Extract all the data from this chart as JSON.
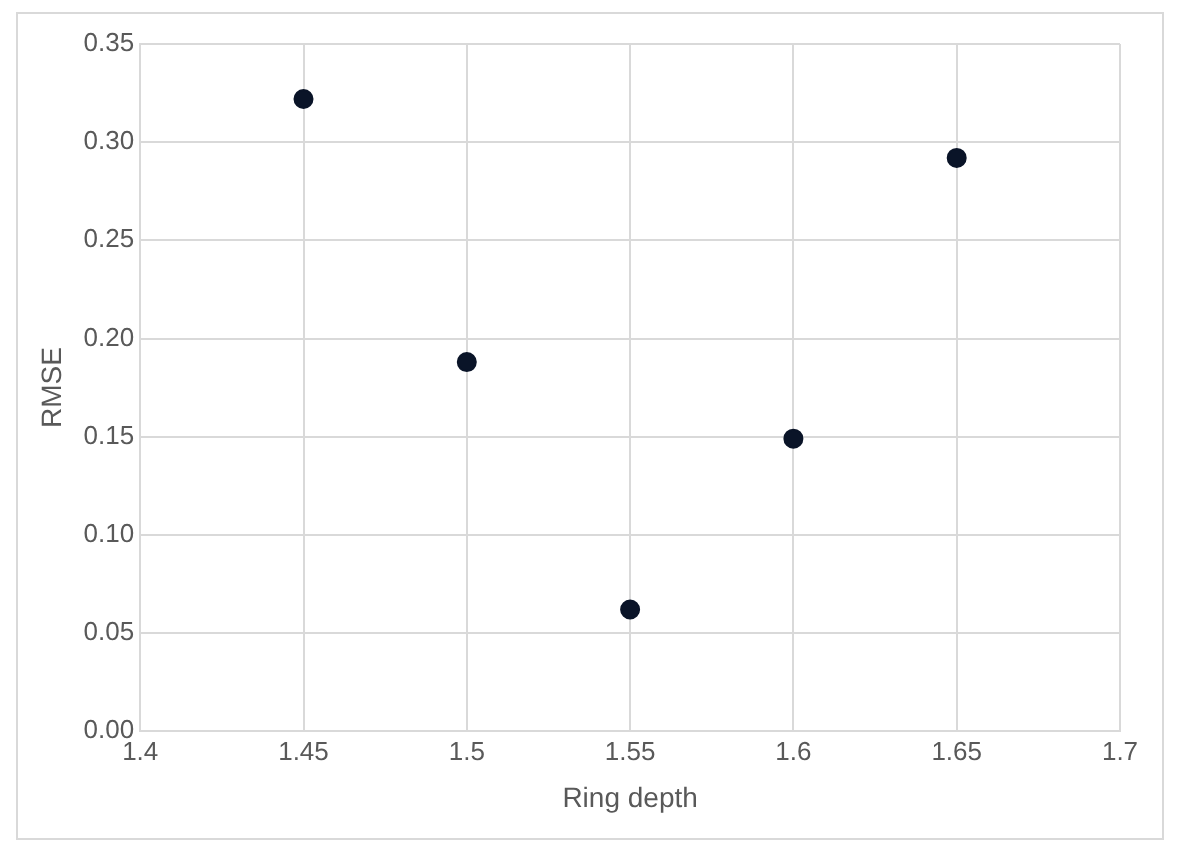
{
  "chart_data": {
    "type": "scatter",
    "xlabel": "Ring depth",
    "ylabel": "RMSE",
    "x": [
      1.45,
      1.5,
      1.55,
      1.6,
      1.65
    ],
    "series": [
      {
        "color": "#0a1428",
        "values": [
          0.322,
          0.188,
          0.062,
          0.149,
          0.292
        ]
      }
    ],
    "xlim": [
      1.4,
      1.7
    ],
    "xticks": [
      1.4,
      1.45,
      1.5,
      1.55,
      1.6,
      1.65,
      1.7
    ],
    "ylim": [
      0,
      0.35
    ],
    "yticks": [
      {
        "value": 0,
        "label": "0.00"
      },
      {
        "value": 0.05,
        "label": "0.05"
      },
      {
        "value": 0.1,
        "label": "0.10"
      },
      {
        "value": 0.15,
        "label": "0.15"
      },
      {
        "value": 0.2,
        "label": "0.20"
      },
      {
        "value": 0.25,
        "label": "0.25"
      },
      {
        "value": 0.3,
        "label": "0.30"
      },
      {
        "value": 0.35,
        "label": "0.35"
      }
    ],
    "grid": true,
    "legend": false,
    "marker": "circle"
  }
}
